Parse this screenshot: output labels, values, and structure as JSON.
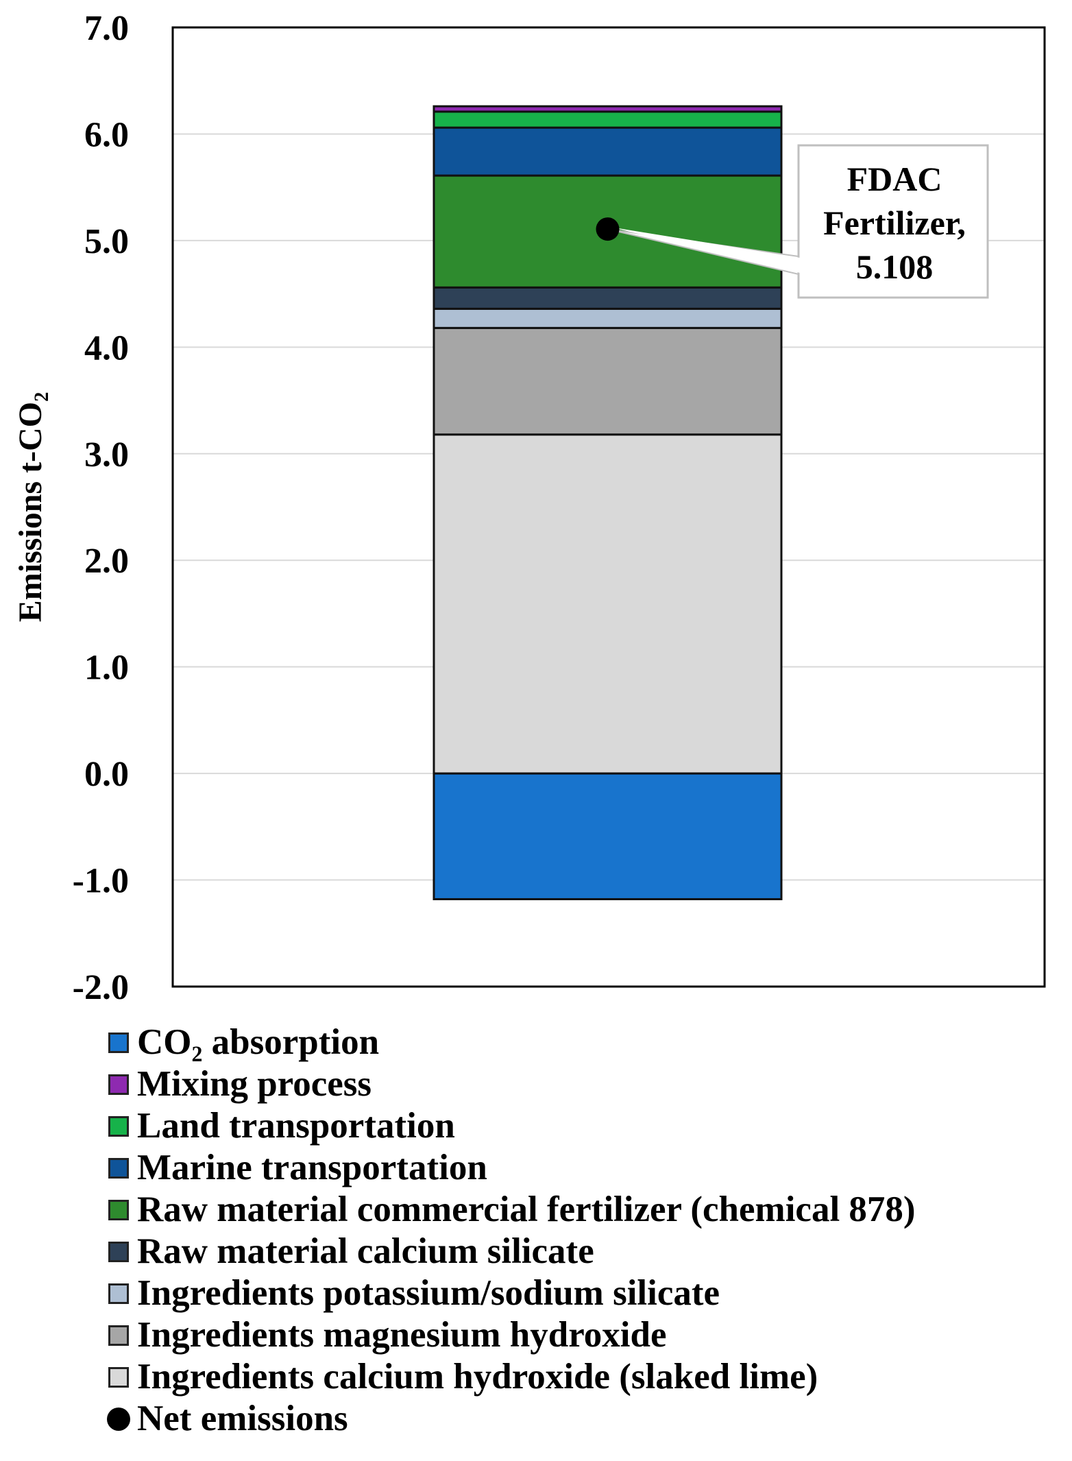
{
  "chart_data": {
    "type": "bar",
    "stacked": true,
    "categories": [
      ""
    ],
    "ylabel": "Emissions t-CO₂",
    "ylim": [
      -2.0,
      7.0
    ],
    "yticks": [
      -2.0,
      -1.0,
      0.0,
      1.0,
      2.0,
      3.0,
      4.0,
      5.0,
      6.0,
      7.0
    ],
    "ytick_labels": [
      "-2.0",
      "-1.0",
      "0.0",
      "1.0",
      "2.0",
      "3.0",
      "4.0",
      "5.0",
      "6.0",
      "7.0"
    ],
    "grid": true,
    "series": [
      {
        "name": "CO₂ absorption",
        "values": [
          -1.18
        ],
        "color": "#1874CD"
      },
      {
        "name": "Ingredients calcium hydroxide (slaked lime)",
        "values": [
          3.18
        ],
        "color": "#D9D9D9"
      },
      {
        "name": "Ingredients magnesium hydroxide",
        "values": [
          1.0
        ],
        "color": "#A6A6A6"
      },
      {
        "name": "Ingredients potassium/sodium silicate",
        "values": [
          0.18
        ],
        "color": "#AEBFD3"
      },
      {
        "name": "Raw material calcium silicate",
        "values": [
          0.2
        ],
        "color": "#2E4157"
      },
      {
        "name": "Raw material commercial fertilizer (chemical 878)",
        "values": [
          1.05
        ],
        "color": "#2E8B2E"
      },
      {
        "name": "Marine transportation",
        "values": [
          0.45
        ],
        "color": "#0F5499"
      },
      {
        "name": "Land transportation",
        "values": [
          0.15
        ],
        "color": "#17B24A"
      },
      {
        "name": "Mixing process",
        "values": [
          0.05
        ],
        "color": "#8E2AB0"
      }
    ],
    "net_emissions": {
      "name": "Net emissions",
      "value": 5.108,
      "color": "#000000"
    },
    "annotation": {
      "lines": [
        "FDAC",
        "Fertilizer,",
        "5.108"
      ]
    }
  },
  "legend": {
    "items": [
      {
        "label": "CO₂ absorption",
        "color": "#1874CD",
        "marker": "square"
      },
      {
        "label": "Mixing process",
        "color": "#8E2AB0",
        "marker": "square"
      },
      {
        "label": "Land transportation",
        "color": "#17B24A",
        "marker": "square"
      },
      {
        "label": "Marine transportation",
        "color": "#0F5499",
        "marker": "square"
      },
      {
        "label": "Raw material commercial fertilizer (chemical 878)",
        "color": "#2E8B2E",
        "marker": "square"
      },
      {
        "label": "Raw material calcium silicate",
        "color": "#2E4157",
        "marker": "square"
      },
      {
        "label": "Ingredients potassium/sodium silicate",
        "color": "#AEBFD3",
        "marker": "square"
      },
      {
        "label": "Ingredients magnesium hydroxide",
        "color": "#A6A6A6",
        "marker": "square"
      },
      {
        "label": "Ingredients calcium hydroxide (slaked lime)",
        "color": "#D9D9D9",
        "marker": "square"
      },
      {
        "label": "Net emissions",
        "color": "#000000",
        "marker": "circle"
      }
    ]
  }
}
